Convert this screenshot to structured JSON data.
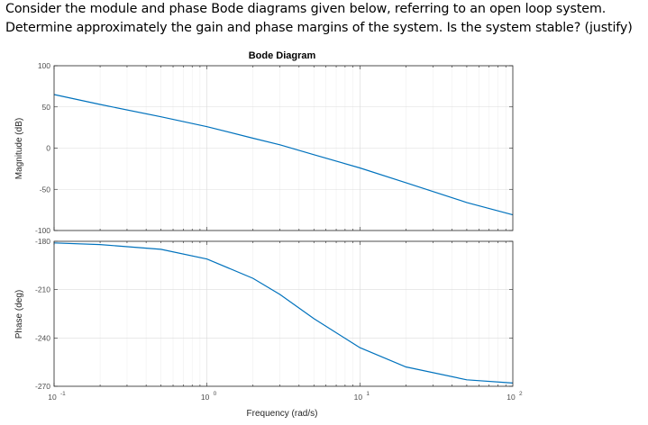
{
  "question": {
    "line1": "Consider the module and phase Bode diagrams given below, referring to an open loop system.",
    "line2": "Determine approximately the gain and phase margins of the system. Is the system stable? (justify)"
  },
  "chart_data": {
    "type": "line",
    "title": "Bode Diagram",
    "xlabel": "Frequency  (rad/s)",
    "x_scale": "log",
    "xlim": [
      0.1,
      100
    ],
    "x_ticks": [
      {
        "value": 0.1,
        "base": "10",
        "exp": "-1"
      },
      {
        "value": 1,
        "base": "10",
        "exp": "0"
      },
      {
        "value": 10,
        "base": "10",
        "exp": "1"
      },
      {
        "value": 100,
        "base": "10",
        "exp": "2"
      }
    ],
    "grid": true,
    "series_color": "#0072bd",
    "panels": [
      {
        "ylabel": "Magnitude (dB)",
        "ylim": [
          -100,
          100
        ],
        "y_ticks": [
          "100",
          "50",
          "0",
          "-50",
          "-100"
        ],
        "x": [
          0.1,
          0.2,
          0.5,
          1,
          2,
          3,
          5,
          10,
          20,
          50,
          100
        ],
        "y": [
          65,
          53,
          38,
          26,
          12,
          4,
          -8,
          -24,
          -42,
          -66,
          -81
        ]
      },
      {
        "ylabel": "Phase (deg)",
        "ylim": [
          -270,
          -180
        ],
        "y_ticks": [
          "-180",
          "-210",
          "-240",
          "-270"
        ],
        "x": [
          0.1,
          0.2,
          0.5,
          1,
          2,
          3,
          5,
          10,
          20,
          50,
          100
        ],
        "y": [
          -181,
          -182,
          -185,
          -191,
          -203,
          -213,
          -228,
          -246,
          -258,
          -266,
          -268
        ]
      }
    ]
  }
}
